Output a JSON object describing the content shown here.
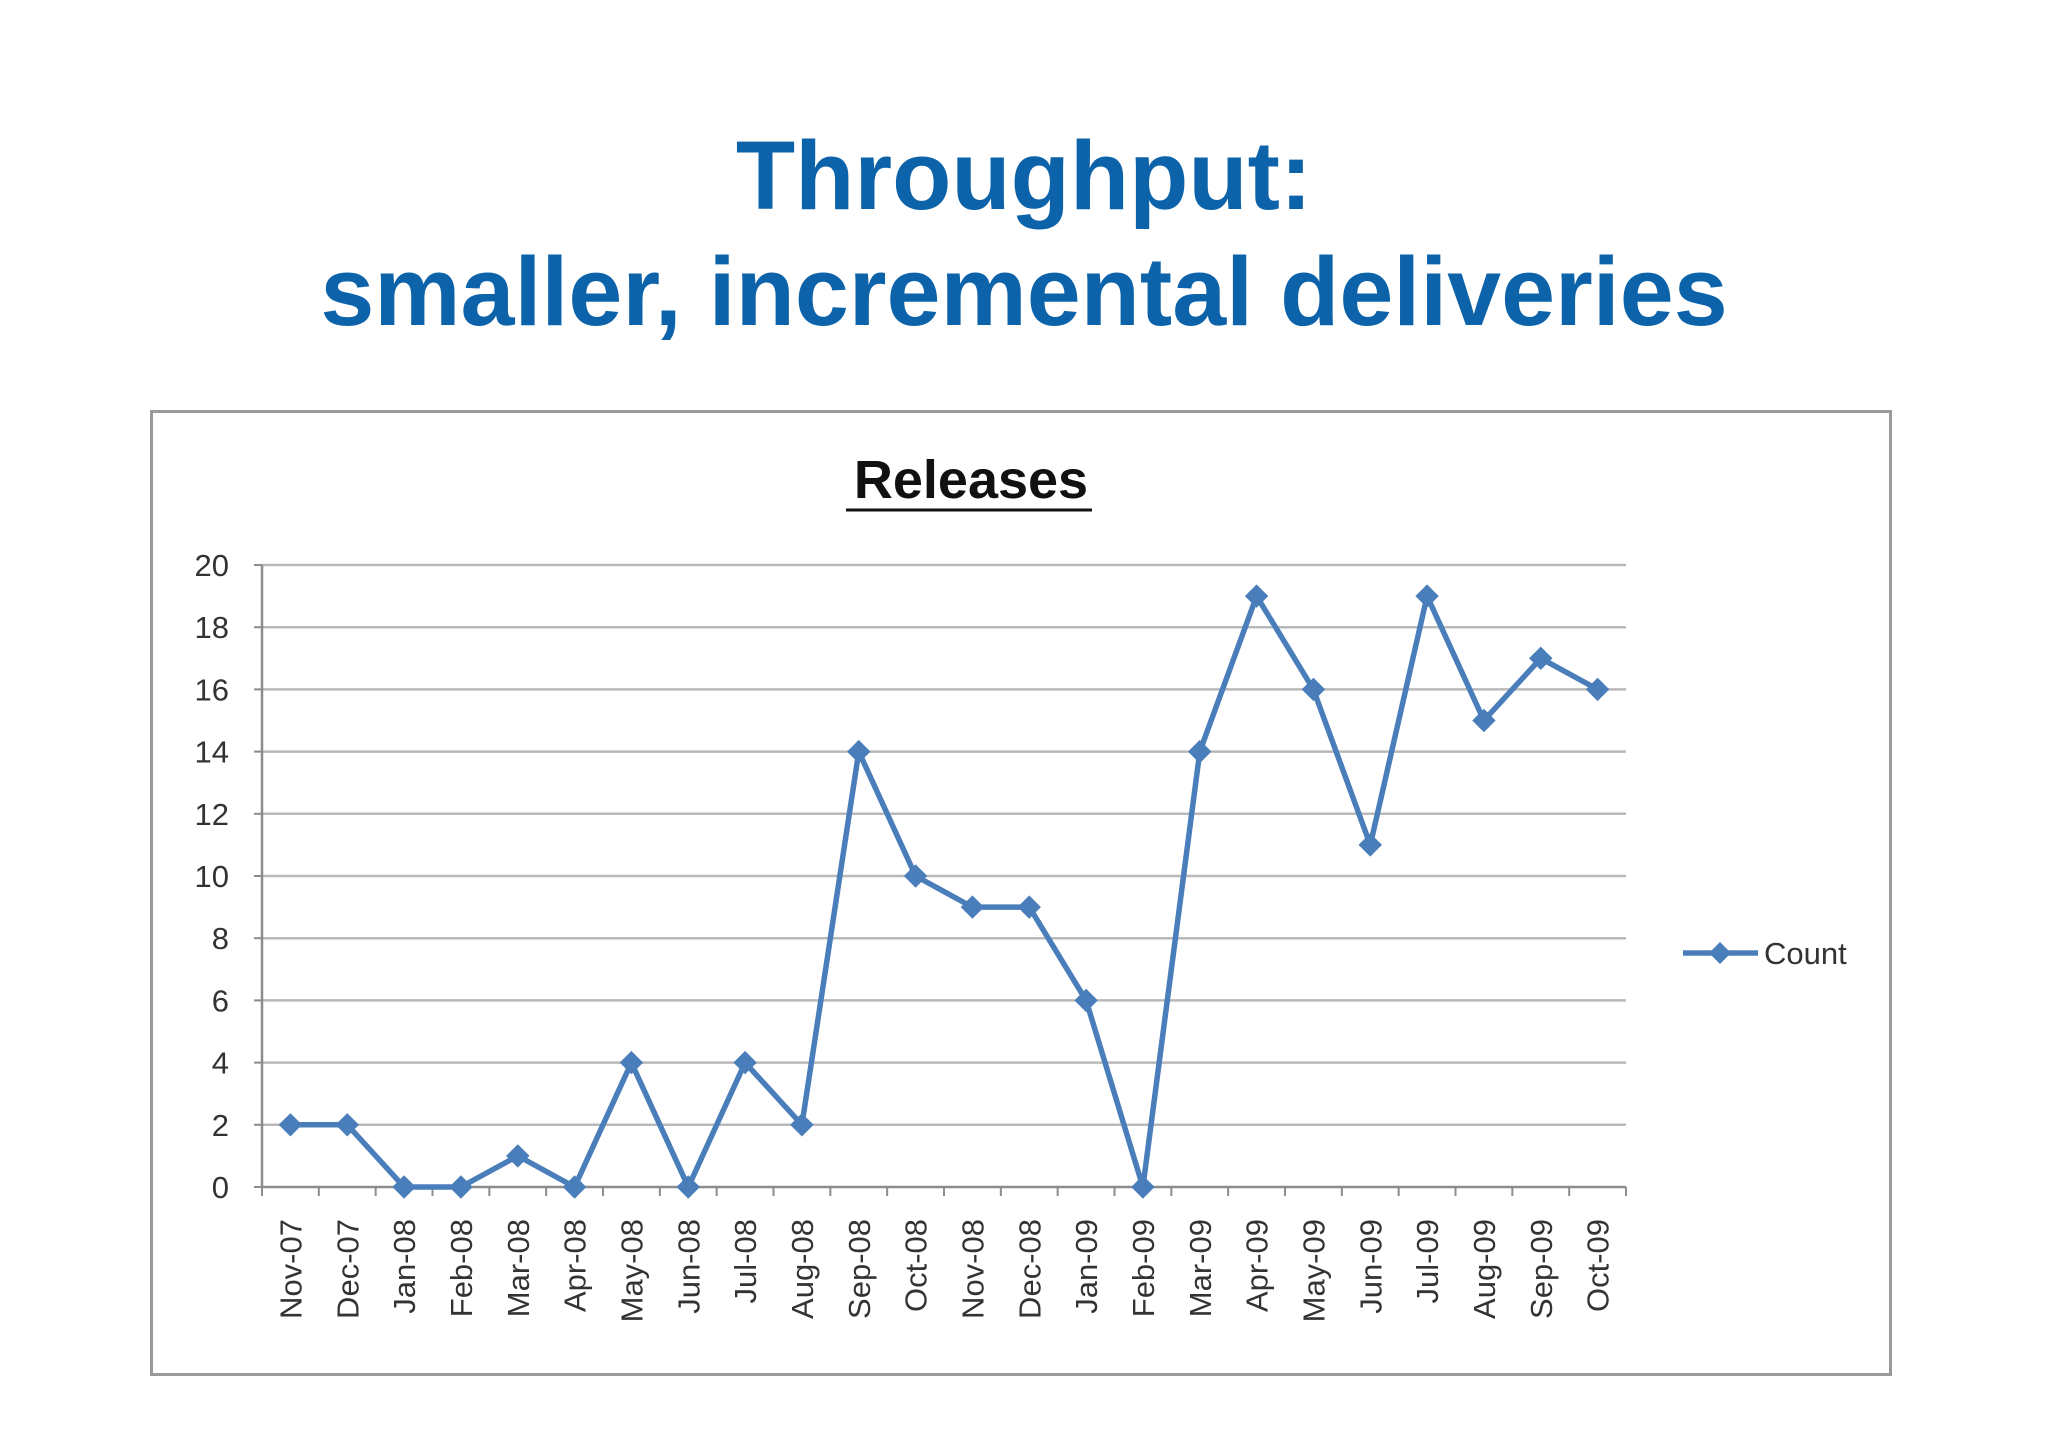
{
  "slide": {
    "title_line1": "Throughput:",
    "title_line2": "smaller, incremental deliveries"
  },
  "colors": {
    "title": "#0d63a9",
    "series": "#4a7ebb",
    "grid": "#b9b9b9",
    "frame": "#9a9a9a"
  },
  "chart_data": {
    "type": "line",
    "title": "Releases",
    "xlabel": "",
    "ylabel": "",
    "ylim": [
      0,
      20
    ],
    "yticks": [
      0,
      2,
      4,
      6,
      8,
      10,
      12,
      14,
      16,
      18,
      20
    ],
    "grid": true,
    "legend_position": "right",
    "categories": [
      "Nov-07",
      "Dec-07",
      "Jan-08",
      "Feb-08",
      "Mar-08",
      "Apr-08",
      "May-08",
      "Jun-08",
      "Jul-08",
      "Aug-08",
      "Sep-08",
      "Oct-08",
      "Nov-08",
      "Dec-08",
      "Jan-09",
      "Feb-09",
      "Mar-09",
      "Apr-09",
      "May-09",
      "Jun-09",
      "Jul-09",
      "Aug-09",
      "Sep-09",
      "Oct-09"
    ],
    "series": [
      {
        "name": "Count",
        "marker": "diamond",
        "values": [
          2,
          2,
          0,
          0,
          1,
          0,
          4,
          0,
          4,
          2,
          14,
          10,
          9,
          9,
          6,
          0,
          14,
          19,
          16,
          11,
          19,
          15,
          17,
          16
        ]
      }
    ]
  }
}
